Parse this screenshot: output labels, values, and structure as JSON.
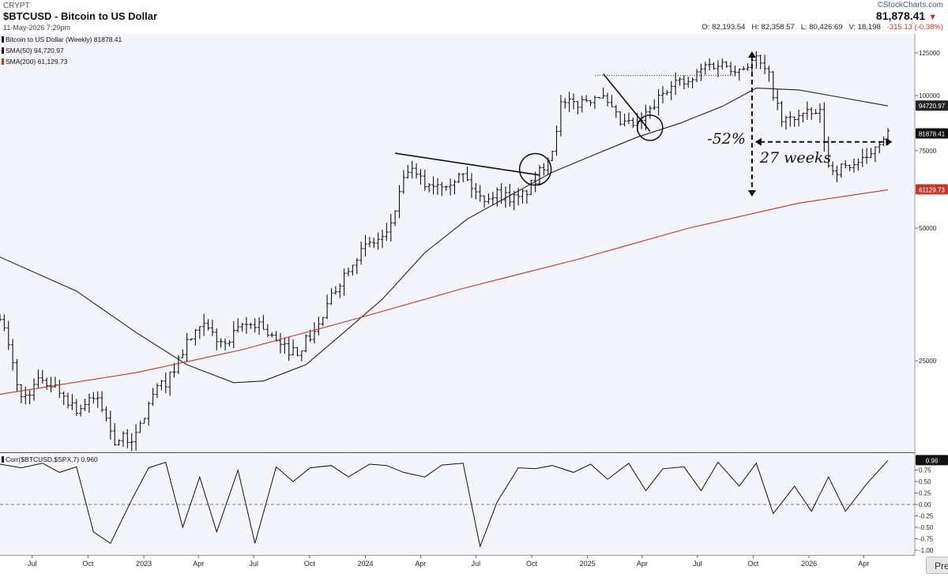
{
  "header": {
    "exchange": "CRYPT",
    "title": "$BTCUSD - Bitcoin to US Dollar",
    "date": "11-May-2026 7:29pm",
    "brand": "©StockCharts.com",
    "last_price": "81,878.41",
    "open_label": "O: 82,193.54",
    "high_label": "H: 82,358.57",
    "low_label": "L: 80,426.69",
    "volume_label": "V: 18,198",
    "change_label": "-315.13 (-0.38%)"
  },
  "legend": {
    "series_main": "Bitcoin to US Dollar (Weekly) 81878.41",
    "sma50": "SMA(50) 94,720.97",
    "sma200": "SMA(200) 61,129.73",
    "corr": "Corr($BTCUSD,$SPX,7) 0.960"
  },
  "price_badges": {
    "sma50": "94720.97",
    "last": "81878.41",
    "sma200": "61129.73",
    "corr": "0.96"
  },
  "annotations": {
    "drawdown": "-52%",
    "duration": "27 weeks"
  },
  "colors": {
    "price": "#111111",
    "sma50": "#222222",
    "sma200": "#c0392b",
    "panel_bg": "#f3f5fa",
    "negative": "#c0392b"
  },
  "buttons": {
    "pre": "Pre"
  },
  "chart_data": [
    {
      "type": "ohlc",
      "title": "$BTCUSD - Bitcoin to US Dollar",
      "scale": "log",
      "frequency": "weekly",
      "x_ticks": [
        "Jul",
        "Oct",
        "2023",
        "Apr",
        "Jul",
        "Oct",
        "2024",
        "Apr",
        "Jul",
        "Oct",
        "2025",
        "Apr",
        "Jul",
        "Oct",
        "2026",
        "Apr"
      ],
      "y_ticks": [
        25000,
        50000,
        75000,
        100000,
        125000
      ],
      "ylim": [
        15500,
        138000
      ],
      "grid": false,
      "series": [
        {
          "name": "Bitcoin to US Dollar (Weekly)",
          "last": 81878.41,
          "x": [
            "2022-05-09",
            "2022-06-13",
            "2022-07-18",
            "2022-08-15",
            "2022-09-12",
            "2022-10-17",
            "2022-11-14",
            "2022-12-19",
            "2023-01-16",
            "2023-02-13",
            "2023-03-13",
            "2023-04-10",
            "2023-05-15",
            "2023-06-12",
            "2023-07-10",
            "2023-08-14",
            "2023-09-11",
            "2023-10-16",
            "2023-11-13",
            "2023-12-11",
            "2024-01-08",
            "2024-02-05",
            "2024-03-11",
            "2024-04-08",
            "2024-05-06",
            "2024-06-10",
            "2024-07-08",
            "2024-08-05",
            "2024-09-09",
            "2024-10-07",
            "2024-11-04",
            "2024-11-18",
            "2024-12-16",
            "2025-01-20",
            "2025-02-24",
            "2025-03-24",
            "2025-04-21",
            "2025-05-19",
            "2025-06-16",
            "2025-07-14",
            "2025-08-11",
            "2025-09-08",
            "2025-10-06",
            "2025-10-27",
            "2025-11-17",
            "2025-12-15",
            "2026-01-19",
            "2026-02-02",
            "2026-02-16",
            "2026-03-16",
            "2026-04-06",
            "2026-04-20",
            "2026-05-04",
            "2026-05-11"
          ],
          "close": [
            32000,
            20500,
            22800,
            21400,
            19400,
            20600,
            16500,
            16800,
            21000,
            23000,
            27500,
            29800,
            27000,
            30000,
            30500,
            26800,
            26300,
            30000,
            36500,
            42500,
            46000,
            48000,
            68000,
            63000,
            63500,
            66000,
            58500,
            60000,
            58000,
            64000,
            76000,
            95000,
            96000,
            101000,
            86500,
            85500,
            95000,
            108000,
            106000,
            117000,
            118000,
            115000,
            121000,
            110000,
            87000,
            90000,
            91000,
            69000,
            68000,
            70000,
            71000,
            77500,
            81000,
            81878.41
          ]
        },
        {
          "name": "SMA(50)",
          "last": 94720.97,
          "x": [
            "2022-05-09",
            "2022-09-12",
            "2022-12-19",
            "2023-03-13",
            "2023-05-29",
            "2023-07-17",
            "2023-09-25",
            "2023-11-20",
            "2024-01-29",
            "2024-04-08",
            "2024-06-17",
            "2024-09-02",
            "2024-11-04",
            "2025-01-13",
            "2025-03-24",
            "2025-06-02",
            "2025-08-11",
            "2025-10-06",
            "2025-12-15",
            "2026-02-23",
            "2026-05-11"
          ],
          "values": [
            43000,
            36000,
            29000,
            24500,
            22300,
            22500,
            24500,
            28500,
            34500,
            44000,
            52500,
            60000,
            67000,
            73500,
            80500,
            86500,
            94500,
            104000,
            103000,
            99000,
            94720.97
          ]
        },
        {
          "name": "SMA(200)",
          "last": 61129.73,
          "x": [
            "2022-05-09",
            "2022-12-19",
            "2023-06-12",
            "2023-12-11",
            "2024-06-10",
            "2024-12-16",
            "2025-06-16",
            "2025-12-15",
            "2026-05-11"
          ],
          "values": [
            21000,
            23500,
            26500,
            31000,
            36500,
            42500,
            50000,
            57000,
            61129.73
          ]
        }
      ],
      "annotations": [
        "-52%",
        "27 weeks"
      ]
    },
    {
      "type": "line",
      "title": "Corr($BTCUSD,$SPX,7)",
      "ylim": [
        -1.0,
        1.0
      ],
      "y_ticks": [
        -1.0,
        -0.75,
        -0.5,
        -0.25,
        0.0,
        0.25,
        0.5,
        0.75
      ],
      "reference_line": 0.0,
      "series": [
        {
          "name": "Corr($BTCUSD,$SPX,7)",
          "last": 0.96,
          "x": [
            "2022-05-09",
            "2022-06-13",
            "2022-07-18",
            "2022-08-15",
            "2022-09-12",
            "2022-10-10",
            "2022-11-07",
            "2022-12-12",
            "2023-01-09",
            "2023-02-06",
            "2023-03-06",
            "2023-04-03",
            "2023-05-01",
            "2023-06-05",
            "2023-07-03",
            "2023-08-07",
            "2023-09-04",
            "2023-10-02",
            "2023-11-06",
            "2023-12-04",
            "2024-01-08",
            "2024-02-05",
            "2024-03-04",
            "2024-04-08",
            "2024-05-06",
            "2024-06-10",
            "2024-07-08",
            "2024-08-05",
            "2024-09-09",
            "2024-10-07",
            "2024-11-04",
            "2024-12-09",
            "2025-01-06",
            "2025-02-03",
            "2025-03-10",
            "2025-04-07",
            "2025-05-05",
            "2025-06-09",
            "2025-07-07",
            "2025-08-04",
            "2025-09-08",
            "2025-10-06",
            "2025-11-03",
            "2025-12-08",
            "2026-01-05",
            "2026-02-02",
            "2026-03-02",
            "2026-04-06",
            "2026-05-11"
          ],
          "values": [
            0.88,
            0.8,
            0.9,
            0.7,
            0.82,
            -0.6,
            -0.85,
            0.1,
            0.8,
            0.92,
            -0.5,
            0.6,
            -0.6,
            0.75,
            -0.85,
            0.82,
            0.5,
            0.8,
            0.85,
            0.6,
            0.88,
            0.85,
            0.7,
            0.6,
            0.86,
            0.9,
            -0.92,
            0.05,
            0.8,
            0.78,
            0.85,
            0.7,
            0.88,
            0.55,
            0.9,
            0.3,
            0.78,
            0.82,
            0.3,
            0.92,
            0.4,
            0.9,
            -0.2,
            0.4,
            -0.15,
            0.6,
            -0.15,
            0.45,
            0.96
          ]
        }
      ]
    }
  ]
}
